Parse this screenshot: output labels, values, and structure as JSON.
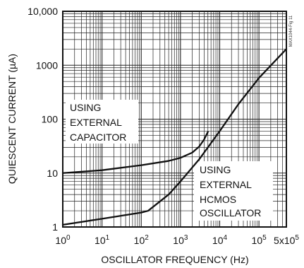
{
  "chart_data": {
    "type": "line",
    "xlabel": "OSCILLATOR FREQUENCY (Hz)",
    "ylabel": "QUIESCENT CURRENT (µA)",
    "x_scale": "log",
    "y_scale": "log",
    "xlim": [
      1,
      500000
    ],
    "ylim": [
      1,
      10000
    ],
    "grid": true,
    "x_ticks": [
      {
        "value": 1,
        "base": "10",
        "exp": "0"
      },
      {
        "value": 10,
        "base": "10",
        "exp": "1"
      },
      {
        "value": 100,
        "base": "10",
        "exp": "2"
      },
      {
        "value": 1000,
        "base": "10",
        "exp": "3"
      },
      {
        "value": 10000,
        "base": "10",
        "exp": "4"
      },
      {
        "value": 100000,
        "base": "10",
        "exp": "5"
      },
      {
        "value": 500000,
        "base": "5x10",
        "exp": "5"
      }
    ],
    "y_ticks": [
      {
        "value": 1,
        "label": "1"
      },
      {
        "value": 10,
        "label": "10"
      },
      {
        "value": 100,
        "label": "100"
      },
      {
        "value": 1000,
        "label": "1000"
      },
      {
        "value": 10000,
        "label": "10,000"
      }
    ],
    "series": [
      {
        "name": "USING EXTERNAL CAPACITOR",
        "x": [
          1,
          10,
          100,
          500,
          1000,
          2000,
          3000,
          4000,
          5000
        ],
        "y": [
          10,
          11.3,
          14,
          16.8,
          19.2,
          24,
          31,
          42,
          58
        ]
      },
      {
        "name": "USING EXTERNAL HCMOS OSCILLATOR",
        "x": [
          1,
          10,
          100,
          150,
          500,
          1000,
          3000,
          10000,
          30000,
          100000,
          300000,
          500000
        ],
        "y": [
          1.1,
          1.42,
          1.85,
          2,
          4,
          7,
          18,
          60,
          190,
          580,
          1350,
          2000
        ]
      }
    ],
    "annotations": [
      {
        "text": "USING",
        "series": 0
      },
      {
        "text": "EXTERNAL",
        "series": 0
      },
      {
        "text": "CAPACITOR",
        "series": 0
      },
      {
        "text": "USING",
        "series": 1
      },
      {
        "text": "EXTERNAL",
        "series": 1
      },
      {
        "text": "HCMOS",
        "series": 1
      },
      {
        "text": "OSCILLATOR",
        "series": 1
      }
    ],
    "figure_id": "MAX1044-Fig 11"
  }
}
